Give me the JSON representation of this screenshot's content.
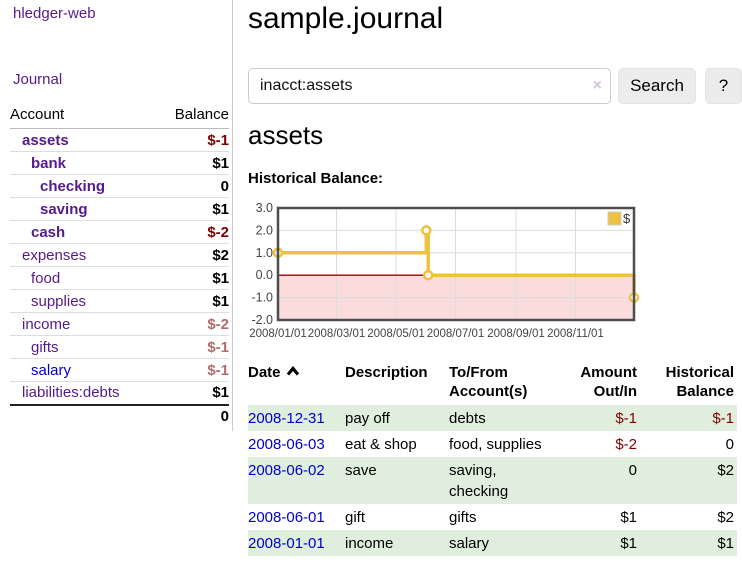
{
  "app": {
    "title_link": "hledger-web",
    "nav_journal": "Journal"
  },
  "sidebar": {
    "headers": {
      "account": "Account",
      "balance": "Balance"
    },
    "accounts": [
      {
        "name": "assets",
        "level": 1,
        "in_acct": true,
        "link_color": "purple",
        "balance": "$-1",
        "balance_style": "neg-strong"
      },
      {
        "name": "bank",
        "level": 2,
        "in_acct": true,
        "link_color": "purple",
        "balance": "$1",
        "balance_style": "pos"
      },
      {
        "name": "checking",
        "level": 3,
        "in_acct": true,
        "link_color": "purple",
        "balance": "0",
        "balance_style": "pos"
      },
      {
        "name": "saving",
        "level": 3,
        "in_acct": true,
        "link_color": "purple",
        "balance": "$1",
        "balance_style": "pos"
      },
      {
        "name": "cash",
        "level": 2,
        "in_acct": true,
        "link_color": "purple",
        "balance": "$-2",
        "balance_style": "neg-strong"
      },
      {
        "name": "expenses",
        "level": 1,
        "in_acct": false,
        "link_color": "purple",
        "balance": "$2",
        "balance_style": "pos"
      },
      {
        "name": "food",
        "level": 2,
        "in_acct": false,
        "link_color": "purple",
        "balance": "$1",
        "balance_style": "pos"
      },
      {
        "name": "supplies",
        "level": 2,
        "in_acct": false,
        "link_color": "purple",
        "balance": "$1",
        "balance_style": "pos"
      },
      {
        "name": "income",
        "level": 1,
        "in_acct": false,
        "link_color": "purple",
        "balance": "$-2",
        "balance_style": "neg-soft"
      },
      {
        "name": "gifts",
        "level": 2,
        "in_acct": false,
        "link_color": "purple",
        "balance": "$-1",
        "balance_style": "neg-soft"
      },
      {
        "name": "salary",
        "level": 2,
        "in_acct": false,
        "link_color": "blue",
        "balance": "$-1",
        "balance_style": "neg-soft"
      },
      {
        "name": "liabilities:debts",
        "level": 1,
        "in_acct": false,
        "link_color": "purple",
        "balance": "$1",
        "balance_style": "pos"
      }
    ],
    "total": "0"
  },
  "main": {
    "title": "sample.journal",
    "search": {
      "value": "inacct:assets",
      "clear_icon": "×",
      "search_button": "Search",
      "help_button": "?"
    },
    "account_heading": "assets",
    "chart_label": "Historical Balance:"
  },
  "chart_data": {
    "type": "line",
    "step": true,
    "title": "Historical Balance",
    "series": [
      {
        "name": "$",
        "color": "#edc240",
        "points": [
          {
            "date": "2008-01-01",
            "value": 1
          },
          {
            "date": "2008-06-01",
            "value": 2
          },
          {
            "date": "2008-06-03",
            "value": 0
          },
          {
            "date": "2008-12-31",
            "value": -1
          }
        ]
      }
    ],
    "x_ticks": [
      "2008/01/01",
      "2008/03/01",
      "2008/05/01",
      "2008/07/01",
      "2008/09/01",
      "2008/11/01"
    ],
    "y_ticks": [
      "3.0",
      "2.0",
      "1.0",
      "0.0",
      "-1.0",
      "-2.0"
    ],
    "ylim": [
      -2,
      3
    ],
    "xlim": [
      "2008-01-01",
      "2008-12-31"
    ],
    "grid": true,
    "grid_color": "#dcdcdc",
    "border_color": "#4d4d4d",
    "axis_text_color": "#444444",
    "negative_region_color": "#fbdcdc",
    "zero_line_color": "#990000",
    "legend": {
      "label": "$",
      "position": "top-right"
    }
  },
  "journal": {
    "headers": [
      {
        "line1": "Date",
        "line2": "",
        "align": "left",
        "sort": "asc"
      },
      {
        "line1": "Description",
        "line2": "",
        "align": "left"
      },
      {
        "line1": "To/From",
        "line2": "Account(s)",
        "align": "left"
      },
      {
        "line1": "Amount",
        "line2": "Out/In",
        "align": "right"
      },
      {
        "line1": "Historical",
        "line2": "Balance",
        "align": "right"
      }
    ],
    "rows": [
      {
        "date": "2008-12-31",
        "description": "pay off",
        "accounts": "debts",
        "amount": "$-1",
        "amount_negative": true,
        "balance": "$-1",
        "balance_negative": true
      },
      {
        "date": "2008-06-03",
        "description": "eat & shop",
        "accounts": "food, supplies",
        "amount": "$-2",
        "amount_negative": true,
        "balance": "0",
        "balance_negative": false
      },
      {
        "date": "2008-06-02",
        "description": "save",
        "accounts": "saving, checking",
        "amount": "0",
        "amount_negative": false,
        "balance": "$2",
        "balance_negative": false
      },
      {
        "date": "2008-06-01",
        "description": "gift",
        "accounts": "gifts",
        "amount": "$1",
        "amount_negative": false,
        "balance": "$2",
        "balance_negative": false
      },
      {
        "date": "2008-01-01",
        "description": "income",
        "accounts": "salary",
        "amount": "$1",
        "amount_negative": false,
        "balance": "$1",
        "balance_negative": false
      }
    ]
  }
}
